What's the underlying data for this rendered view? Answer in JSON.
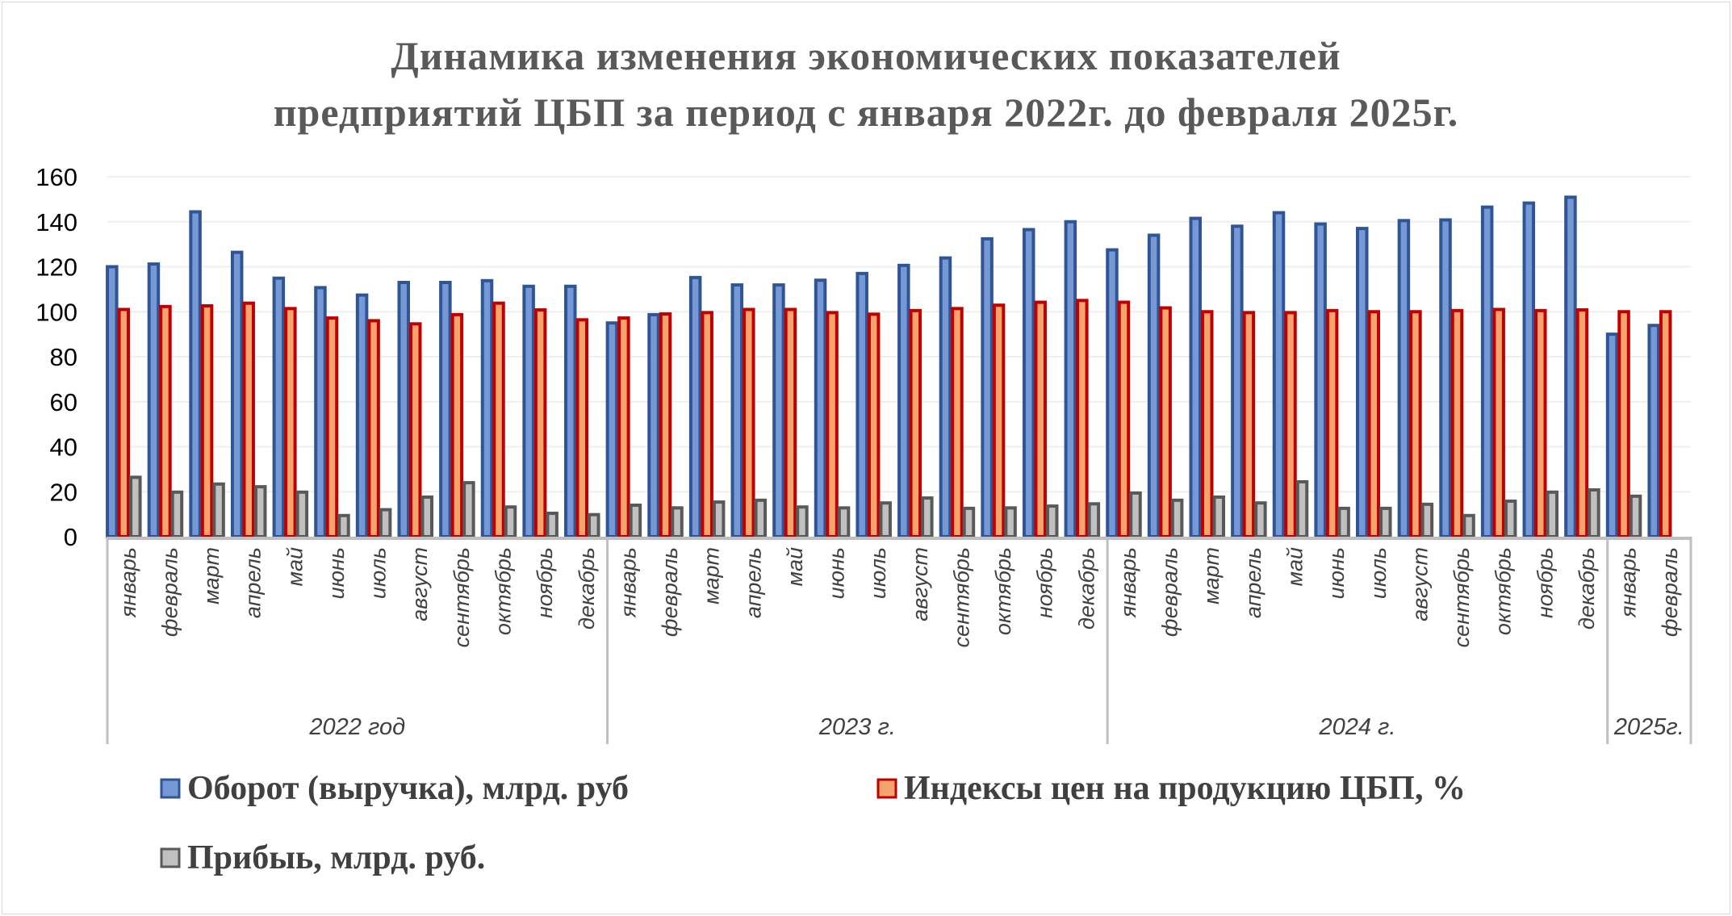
{
  "chart_data": {
    "type": "bar",
    "title": [
      "Динамика изменения экономических показателей",
      "предприятий ЦБП за период с января 2022г. до февраля 2025г."
    ],
    "ylim": [
      0,
      160
    ],
    "yticks": [
      0,
      20,
      40,
      60,
      80,
      100,
      120,
      140,
      160
    ],
    "grid": true,
    "legend_position": "bottom",
    "groups": [
      {
        "label": "2022 год",
        "months": [
          "январь",
          "февраль",
          "март",
          "апрель",
          "май",
          "июнь",
          "июль",
          "август",
          "сентябрь",
          "октябрь",
          "ноябрь",
          "декабрь"
        ]
      },
      {
        "label": "2023 г.",
        "months": [
          "январь",
          "февраль",
          "март",
          "апрель",
          "май",
          "июнь",
          "июль",
          "август",
          "сентябрь",
          "октябрь",
          "ноябрь",
          "декабрь"
        ]
      },
      {
        "label": "2024 г.",
        "months": [
          "январь",
          "февраль",
          "март",
          "апрель",
          "май",
          "июнь",
          "июль",
          "август",
          "сентябрь",
          "октябрь",
          "ноябрь",
          "декабрь"
        ]
      },
      {
        "label": "2025г.",
        "months": [
          "январь",
          "февраль"
        ]
      }
    ],
    "series": [
      {
        "name": "Оборот (выручка), млрд. руб",
        "fill": "#7698d4",
        "stroke": "#2f5597",
        "values": [
          120,
          121.2,
          144.4,
          126.4,
          114.9,
          110.7,
          107.4,
          113,
          113,
          113.8,
          111.3,
          111.3,
          95,
          98.7,
          115.2,
          111.9,
          111.9,
          114,
          117,
          120.6,
          123.9,
          132.4,
          136.5,
          140,
          127.5,
          134,
          141.5,
          138,
          144,
          139,
          137,
          140.5,
          140.8,
          146.5,
          148.3,
          150.9,
          90,
          93.9
        ]
      },
      {
        "name": "Индексы цен на продукцию ЦБП, %",
        "fill": "#f4a46c",
        "stroke": "#c00000",
        "values": [
          101,
          102.3,
          102.6,
          103.8,
          101.4,
          97.2,
          96,
          94.6,
          98.7,
          103.8,
          100.8,
          96.4,
          97.2,
          99,
          99.6,
          101,
          101,
          99.6,
          98.9,
          100.5,
          101.4,
          102.9,
          104.2,
          105,
          104.2,
          101.7,
          100,
          99.6,
          99.6,
          100.5,
          100,
          100,
          100.5,
          101,
          100.5,
          100.8,
          100,
          100
        ]
      },
      {
        "name": "Прибыь, млрд. руб.",
        "fill": "#c0c0c0",
        "stroke": "#595959",
        "values": [
          26.4,
          19.8,
          23.4,
          22.2,
          19.8,
          9.4,
          12,
          17.6,
          24,
          13.2,
          10.4,
          9.8,
          14,
          12.8,
          15.4,
          16.2,
          13.2,
          12.8,
          15,
          17.2,
          12.6,
          12.8,
          13.6,
          14.6,
          19.4,
          16.2,
          17.6,
          15,
          24.4,
          12.6,
          12.6,
          14.4,
          9.4,
          15.8,
          19.8,
          20.8,
          18,
          null
        ]
      }
    ]
  }
}
